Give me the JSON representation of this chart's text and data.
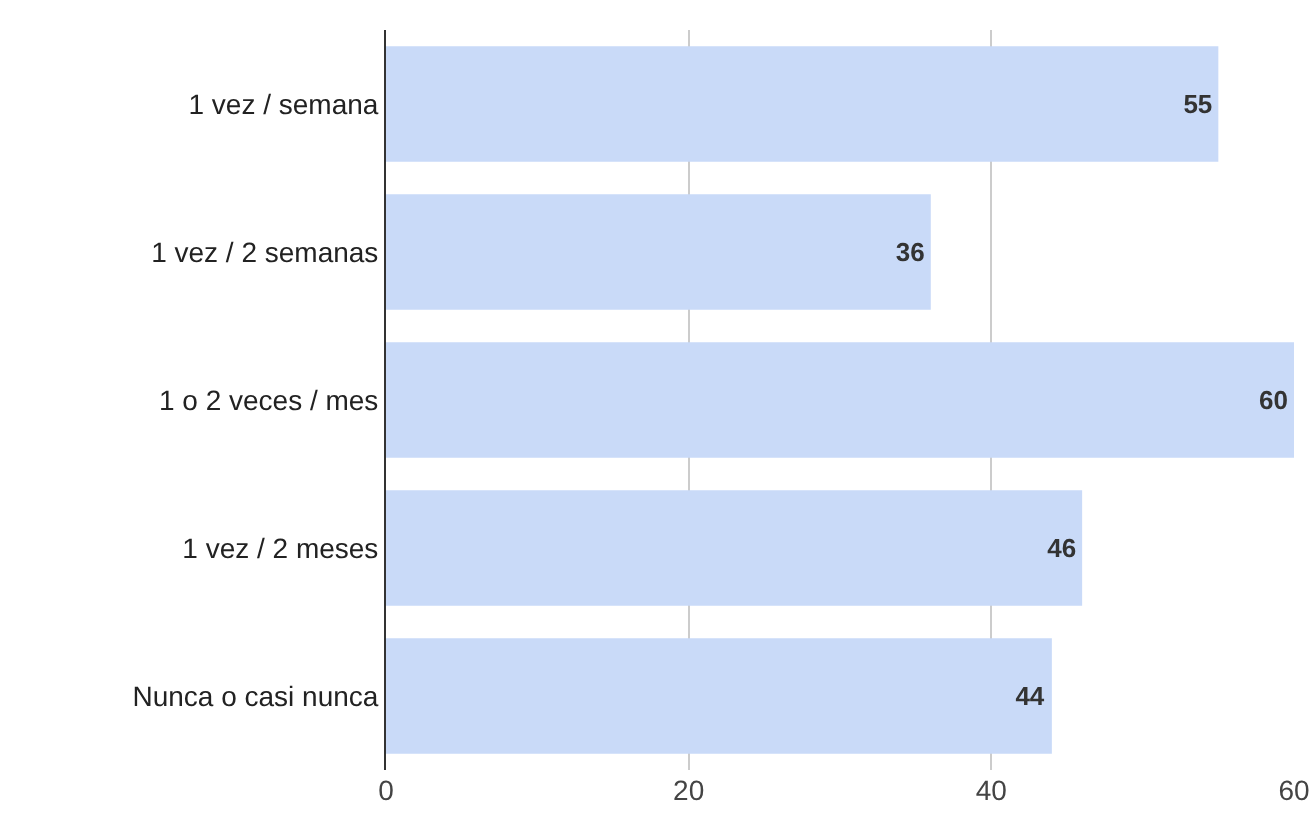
{
  "chart_data": {
    "type": "bar",
    "orientation": "horizontal",
    "categories": [
      "1 vez / semana",
      "1 vez / 2 semanas",
      "1 o 2 veces / mes",
      "1 vez / 2 meses",
      "Nunca o casi nunca"
    ],
    "values": [
      55,
      36,
      60,
      46,
      44
    ],
    "color": "#c9daf8",
    "xlim": [
      0,
      60
    ],
    "xticks": [
      0,
      20,
      40,
      60
    ],
    "grid": "x",
    "data_labels": true,
    "legend": false
  }
}
